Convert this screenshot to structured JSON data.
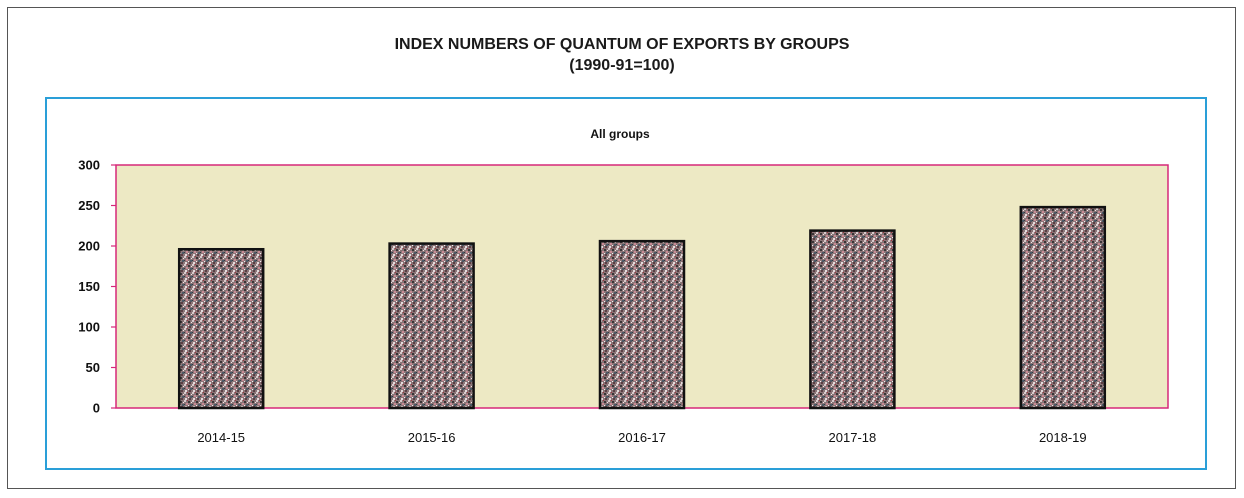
{
  "title": "INDEX NUMBERS OF QUANTUM OF EXPORTS BY GROUPS",
  "subtitle": "(1990-91=100)",
  "colors": {
    "frame_border": "#2a9fd8",
    "plot_border": "#d6287a",
    "plot_background": "#ede9c4",
    "bar_outline": "#111111",
    "bar_speckle_base": "#7a6b6e"
  },
  "chart_data": {
    "type": "bar",
    "title": "All groups",
    "xlabel": "",
    "ylabel": "",
    "categories": [
      "2014-15",
      "2015-16",
      "2016-17",
      "2017-18",
      "2018-19"
    ],
    "values": [
      196,
      203,
      206,
      219,
      248
    ],
    "ylim": [
      0,
      300
    ],
    "yticks": [
      0,
      50,
      100,
      150,
      200,
      250,
      300
    ],
    "grid": false,
    "legend": "none"
  }
}
